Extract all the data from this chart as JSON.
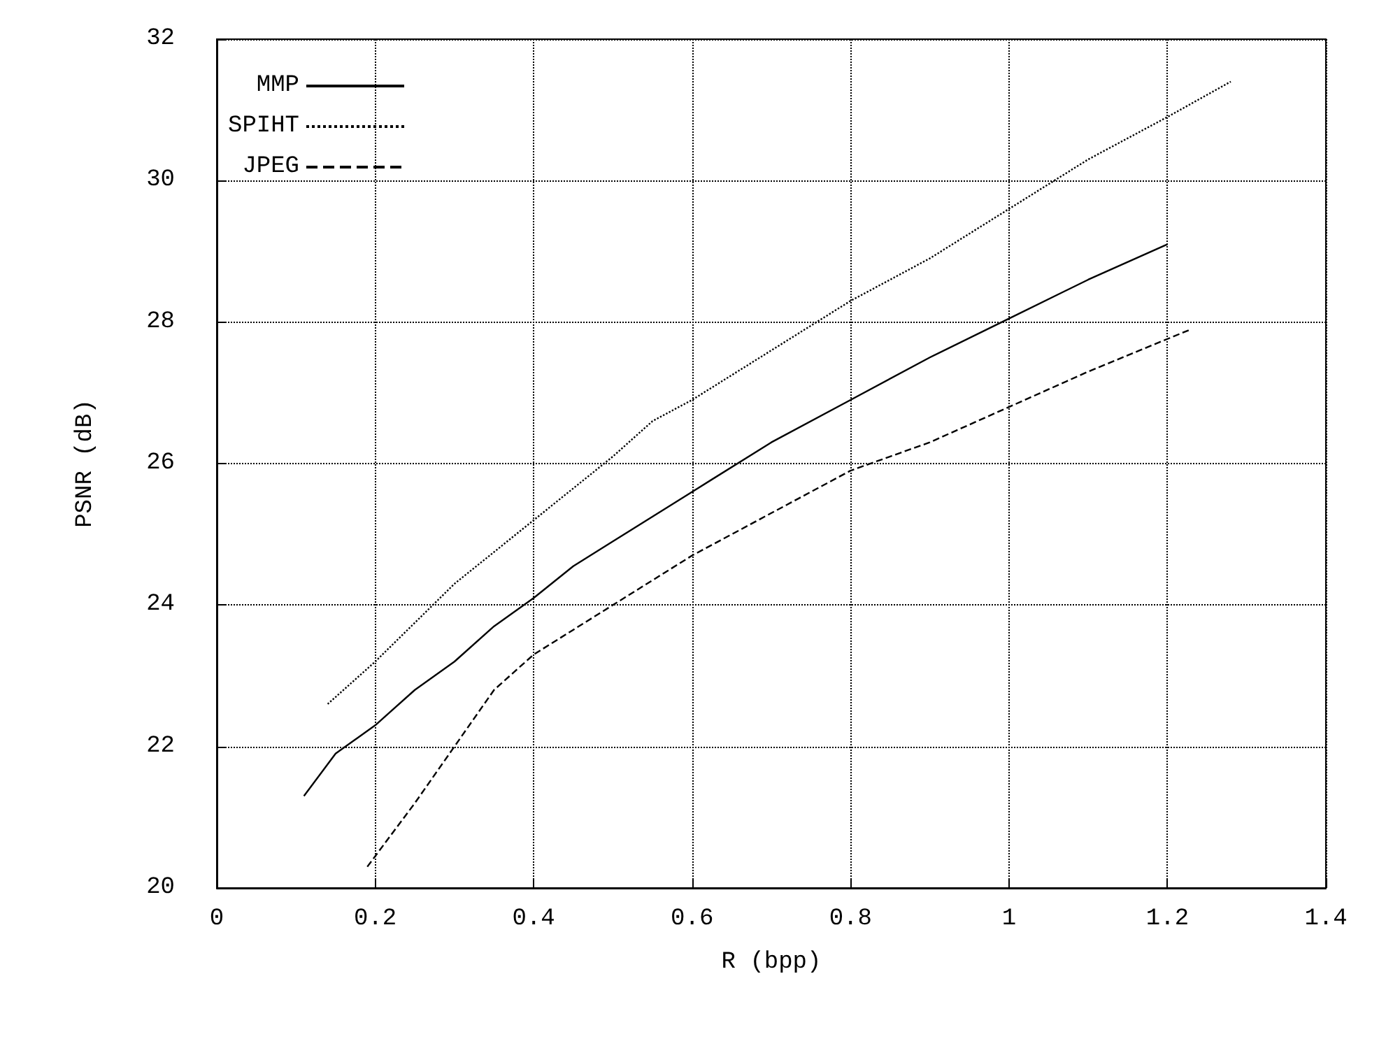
{
  "chart_data": {
    "type": "line",
    "xlabel": "R (bpp)",
    "ylabel": "PSNR (dB)",
    "xlim": [
      0,
      1.4
    ],
    "xticks": [
      0,
      0.2,
      0.4,
      0.6,
      0.8,
      1,
      1.2,
      1.4
    ],
    "ylim": [
      20,
      32
    ],
    "yticks": [
      20,
      22,
      24,
      26,
      28,
      30,
      32
    ],
    "grid": true,
    "legend": "top left",
    "series": [
      {
        "name": "MMP",
        "color": "#000000",
        "line_style": "solid",
        "x": [
          0.11,
          0.15,
          0.2,
          0.25,
          0.3,
          0.35,
          0.4,
          0.45,
          0.5,
          0.6,
          0.7,
          0.8,
          0.9,
          1.0,
          1.1,
          1.2
        ],
        "values": [
          21.3,
          21.9,
          22.3,
          22.8,
          23.2,
          23.7,
          24.1,
          24.55,
          24.9,
          25.6,
          26.3,
          26.9,
          27.5,
          28.05,
          28.6,
          29.1
        ]
      },
      {
        "name": "SPIHT",
        "color": "#000000",
        "line_style": "dotted",
        "x": [
          0.14,
          0.2,
          0.3,
          0.4,
          0.5,
          0.55,
          0.6,
          0.7,
          0.8,
          0.9,
          1.0,
          1.1,
          1.2,
          1.28
        ],
        "values": [
          22.6,
          23.2,
          24.3,
          25.2,
          26.1,
          26.6,
          26.9,
          27.6,
          28.3,
          28.9,
          29.6,
          30.3,
          30.9,
          31.4
        ]
      },
      {
        "name": "JPEG",
        "color": "#000000",
        "line_style": "dashed",
        "x": [
          0.19,
          0.25,
          0.3,
          0.35,
          0.4,
          0.5,
          0.6,
          0.7,
          0.8,
          0.9,
          1.0,
          1.1,
          1.23
        ],
        "values": [
          20.3,
          21.2,
          22.0,
          22.8,
          23.3,
          24.0,
          24.7,
          25.3,
          25.9,
          26.3,
          26.8,
          27.3,
          27.9
        ]
      }
    ]
  }
}
